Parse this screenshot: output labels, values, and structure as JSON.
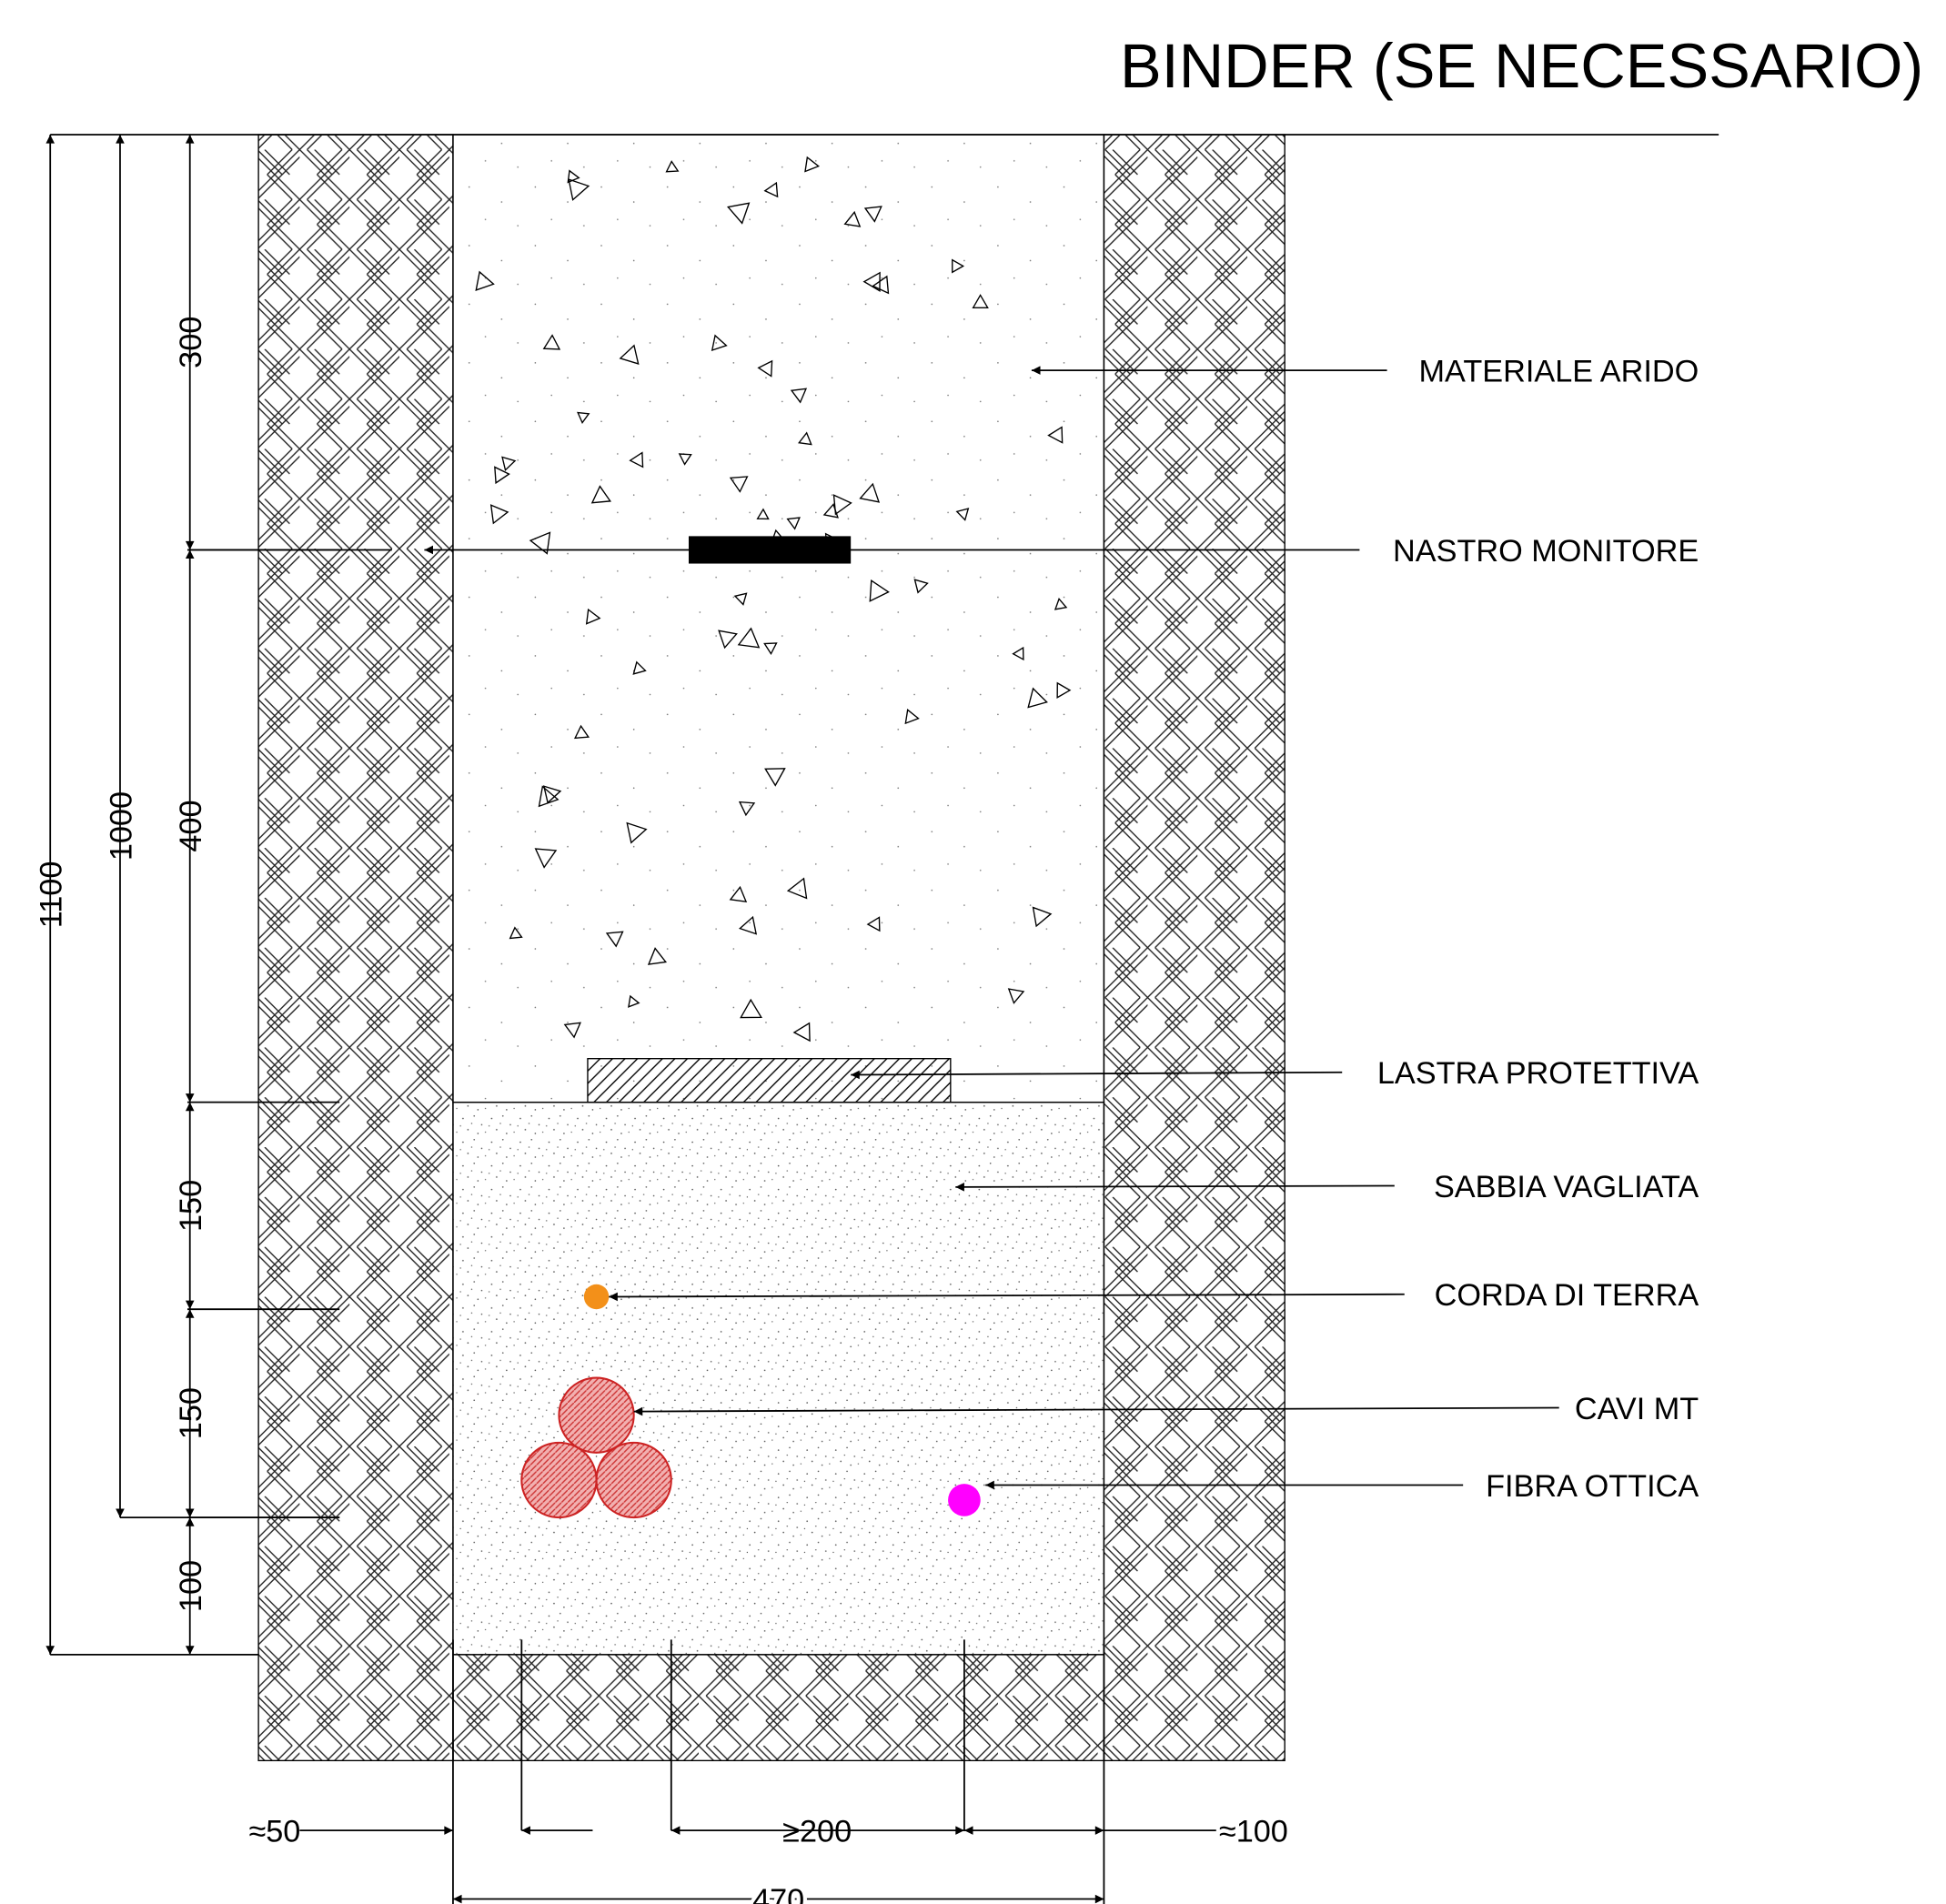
{
  "title": "BINDER (SE NECESSARIO)",
  "labels": [
    "MATERIALE ARIDO",
    "NASTRO MONITORE",
    "LASTRA PROTETTIVA",
    "SABBIA VAGLIATA",
    "CORDA DI TERRA",
    "CAVI MT",
    "FIBRA OTTICA"
  ],
  "dimensions": {
    "vertical": [
      "1100",
      "1000",
      "300",
      "400",
      "150",
      "150",
      "100"
    ],
    "horizontal": [
      "≈50",
      "≥200",
      "≈100",
      "470"
    ]
  }
}
